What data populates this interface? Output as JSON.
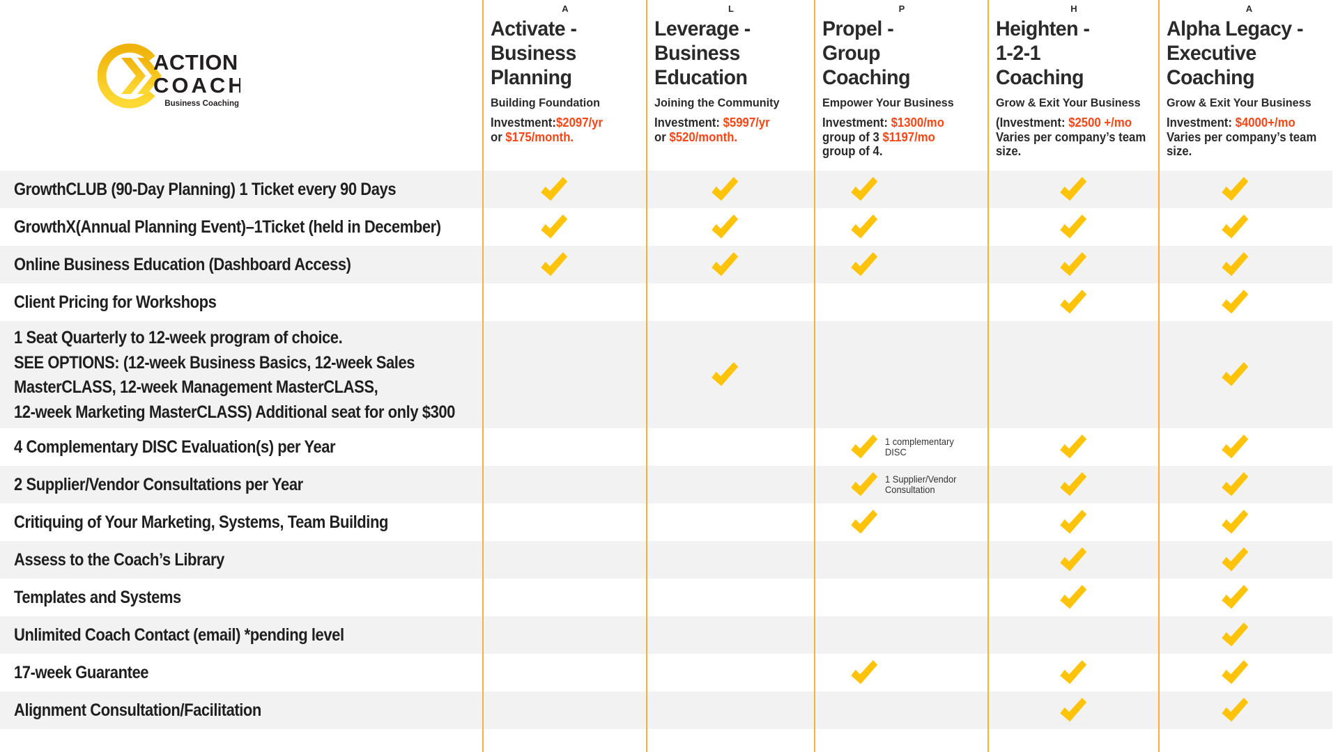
{
  "colors": {
    "check": "#FFC40A",
    "price": "#FA4616",
    "divider": "#FBAD3E",
    "stripe": "#F2F2F2",
    "logo_gold_dark": "#F2B60C",
    "logo_gold_light": "#FFD92F",
    "text_dark": "#272727"
  },
  "logo": {
    "action": "ACTION",
    "coach": "COACH",
    "tagline": "Business Coaching"
  },
  "columns": [
    {
      "letter": "A",
      "title_lines": [
        "Activate -",
        "Business",
        "Planning"
      ],
      "subtitle": "Building Foundation",
      "investment_lines": [
        [
          {
            "t": "Investment:",
            "orange": false
          },
          {
            "t": "$2097/yr",
            "orange": true
          }
        ],
        [
          {
            "t": "or ",
            "orange": false
          },
          {
            "t": "$175/month.",
            "orange": true
          }
        ]
      ]
    },
    {
      "letter": "L",
      "title_lines": [
        "Leverage -",
        "Business",
        "Education"
      ],
      "subtitle": "Joining the Community",
      "investment_lines": [
        [
          {
            "t": "Investment: ",
            "orange": false
          },
          {
            "t": "$5997/yr",
            "orange": true
          }
        ],
        [
          {
            "t": "or ",
            "orange": false
          },
          {
            "t": "$520/month.",
            "orange": true
          }
        ]
      ]
    },
    {
      "letter": "P",
      "title_lines": [
        "Propel -",
        "Group",
        "Coaching"
      ],
      "subtitle": "Empower Your Business",
      "investment_lines": [
        [
          {
            "t": "Investment: ",
            "orange": false
          },
          {
            "t": "$1300/mo",
            "orange": true
          }
        ],
        [
          {
            "t": "group of 3 ",
            "orange": false
          },
          {
            "t": "$1197/mo",
            "orange": true
          }
        ],
        [
          {
            "t": "group of 4.",
            "orange": false
          }
        ]
      ]
    },
    {
      "letter": "H",
      "title_lines": [
        "Heighten -",
        "1-2-1",
        "Coaching"
      ],
      "subtitle": "Grow & Exit Your Business",
      "investment_lines": [
        [
          {
            "t": "(Investment: ",
            "orange": false
          },
          {
            "t": "$2500 +/mo",
            "orange": true
          }
        ],
        [
          {
            "t": "Varies per company’s team",
            "orange": false
          }
        ],
        [
          {
            "t": "size.",
            "orange": false
          }
        ]
      ]
    },
    {
      "letter": "A",
      "title_lines": [
        "Alpha Legacy -",
        "Executive",
        "Coaching"
      ],
      "subtitle": "Grow & Exit Your Business",
      "investment_lines": [
        [
          {
            "t": "Investment: ",
            "orange": false
          },
          {
            "t": "$4000+/mo",
            "orange": true
          }
        ],
        [
          {
            "t": "Varies per company’s team",
            "orange": false
          }
        ],
        [
          {
            "t": "size.",
            "orange": false
          }
        ]
      ]
    }
  ],
  "rows": [
    {
      "label": "GrowthCLUB (90-Day Planning) 1 Ticket every 90 Days",
      "checks": [
        1,
        1,
        1,
        1,
        1
      ]
    },
    {
      "label": "GrowthX(Annual Planning Event)–1Ticket (held in December)",
      "checks": [
        1,
        1,
        1,
        1,
        1
      ]
    },
    {
      "label": "Online Business Education (Dashboard Access)",
      "checks": [
        1,
        1,
        1,
        1,
        1
      ]
    },
    {
      "label": "Client Pricing for Workshops",
      "checks": [
        0,
        0,
        0,
        1,
        1
      ]
    },
    {
      "lines": [
        "1 Seat Quarterly to 12-week program of choice.",
        "SEE OPTIONS: (12-week Business Basics, 12-week Sales",
        "MasterCLASS, 12-week Management MasterCLASS,",
        "12-week Marketing MasterCLASS) Additional seat for only $300"
      ],
      "checks": [
        0,
        1,
        0,
        0,
        1
      ]
    },
    {
      "label": "4 Complementary DISC Evaluation(s) per Year",
      "checks": [
        0,
        0,
        1,
        1,
        1
      ],
      "note": {
        "col": 2,
        "lines": [
          "1 complementary",
          "DISC"
        ]
      }
    },
    {
      "label": "2 Supplier/Vendor Consultations per Year",
      "checks": [
        0,
        0,
        1,
        1,
        1
      ],
      "note": {
        "col": 2,
        "lines": [
          "1 Supplier/Vendor",
          "Consultation"
        ]
      }
    },
    {
      "label": "Critiquing of Your Marketing, Systems, Team Building",
      "checks": [
        0,
        0,
        1,
        1,
        1
      ]
    },
    {
      "label": "Assess to the Coach’s Library",
      "checks": [
        0,
        0,
        0,
        1,
        1
      ]
    },
    {
      "label": "Templates and Systems",
      "checks": [
        0,
        0,
        0,
        1,
        1
      ]
    },
    {
      "label": "Unlimited Coach Contact (email) *pending level",
      "checks": [
        0,
        0,
        0,
        0,
        1
      ]
    },
    {
      "label": "17-week Guarantee",
      "checks": [
        0,
        0,
        1,
        1,
        1
      ]
    },
    {
      "label": "Alignment Consultation/Facilitation",
      "checks": [
        0,
        0,
        0,
        1,
        1
      ]
    }
  ]
}
